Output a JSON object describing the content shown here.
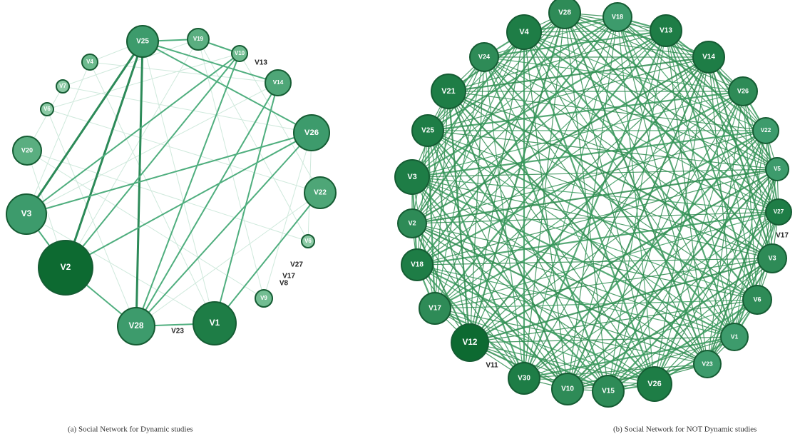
{
  "figures": [
    {
      "caption": "(a) Social Network for Dynamic studies",
      "nodes": [
        {
          "label": "V25"
        },
        {
          "label": "V19"
        },
        {
          "label": "V10"
        },
        {
          "label": "V13"
        },
        {
          "label": "V14"
        },
        {
          "label": "V26"
        },
        {
          "label": "V22"
        },
        {
          "label": "V6"
        },
        {
          "label": "V27"
        },
        {
          "label": "V17"
        },
        {
          "label": "V8"
        },
        {
          "label": "V9"
        },
        {
          "label": "V1"
        },
        {
          "label": "V23"
        },
        {
          "label": "V28"
        },
        {
          "label": "V2"
        },
        {
          "label": "V3"
        },
        {
          "label": "V20"
        },
        {
          "label": "V6"
        },
        {
          "label": "V7"
        },
        {
          "label": "V4"
        }
      ]
    },
    {
      "caption": "(b) Social Network for NOT Dynamic studies",
      "nodes": [
        {
          "label": "V28"
        },
        {
          "label": "V18"
        },
        {
          "label": "V13"
        },
        {
          "label": "V14"
        },
        {
          "label": "V26"
        },
        {
          "label": "V22"
        },
        {
          "label": "V5"
        },
        {
          "label": "V27"
        },
        {
          "label": "V17"
        },
        {
          "label": "V3"
        },
        {
          "label": "V6"
        },
        {
          "label": "V1"
        },
        {
          "label": "V23"
        },
        {
          "label": "V26"
        },
        {
          "label": "V15"
        },
        {
          "label": "V10"
        },
        {
          "label": "V30"
        },
        {
          "label": "V11"
        },
        {
          "label": "V12"
        },
        {
          "label": "V17"
        },
        {
          "label": "V18"
        },
        {
          "label": "V2"
        },
        {
          "label": "V3"
        },
        {
          "label": "V25"
        },
        {
          "label": "V21"
        },
        {
          "label": "V24"
        },
        {
          "label": "V4"
        }
      ]
    }
  ]
}
